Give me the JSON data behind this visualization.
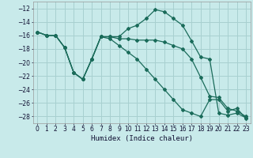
{
  "xlabel": "Humidex (Indice chaleur)",
  "background_color": "#c8eaea",
  "grid_color": "#a8d0d0",
  "line_color": "#1a6b5a",
  "xlim": [
    -0.5,
    23.5
  ],
  "ylim": [
    -29,
    -11
  ],
  "yticks": [
    -28,
    -26,
    -24,
    -22,
    -20,
    -18,
    -16,
    -14,
    -12
  ],
  "xticks": [
    0,
    1,
    2,
    3,
    4,
    5,
    6,
    7,
    8,
    9,
    10,
    11,
    12,
    13,
    14,
    15,
    16,
    17,
    18,
    19,
    20,
    21,
    22,
    23
  ],
  "series": [
    [
      -15.5,
      -16.0,
      -16.0,
      -17.8,
      -21.5,
      -22.5,
      -19.5,
      -16.2,
      -16.2,
      -16.2,
      -15.0,
      -14.5,
      -13.5,
      -12.2,
      -12.5,
      -13.5,
      -14.5,
      -16.8,
      -19.2,
      -19.5,
      -27.5,
      -27.8,
      -27.5,
      -28.2
    ],
    [
      -15.5,
      -16.0,
      -16.0,
      -17.8,
      -21.5,
      -22.5,
      -19.5,
      -16.2,
      -16.2,
      -16.5,
      -16.5,
      -16.7,
      -16.7,
      -16.7,
      -17.0,
      -17.5,
      -18.0,
      -19.5,
      -22.2,
      -25.0,
      -25.2,
      -26.8,
      -27.2,
      -28.0
    ],
    [
      -15.5,
      -16.0,
      -16.0,
      -17.8,
      -21.5,
      -22.5,
      -19.5,
      -16.2,
      -16.5,
      -17.5,
      -18.5,
      -19.5,
      -21.0,
      -22.5,
      -24.0,
      -25.5,
      -27.0,
      -27.5,
      -28.0,
      -25.5,
      -25.5,
      -27.2,
      -26.8,
      -28.3
    ]
  ]
}
